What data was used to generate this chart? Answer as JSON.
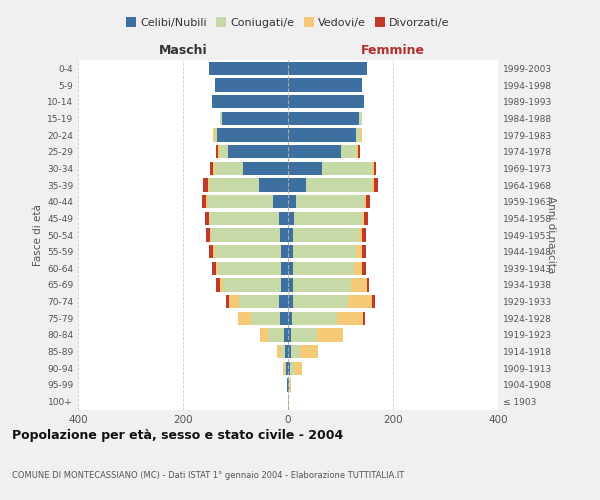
{
  "age_groups": [
    "100+",
    "95-99",
    "90-94",
    "85-89",
    "80-84",
    "75-79",
    "70-74",
    "65-69",
    "60-64",
    "55-59",
    "50-54",
    "45-49",
    "40-44",
    "35-39",
    "30-34",
    "25-29",
    "20-24",
    "15-19",
    "10-14",
    "5-9",
    "0-4"
  ],
  "birth_years": [
    "≤ 1903",
    "1904-1908",
    "1909-1913",
    "1914-1918",
    "1919-1923",
    "1924-1928",
    "1929-1933",
    "1934-1938",
    "1939-1943",
    "1944-1948",
    "1949-1953",
    "1954-1958",
    "1959-1963",
    "1964-1968",
    "1969-1973",
    "1974-1978",
    "1979-1983",
    "1984-1988",
    "1989-1993",
    "1994-1998",
    "1999-2003"
  ],
  "maschi": {
    "celibi": [
      0,
      1,
      3,
      5,
      8,
      15,
      18,
      14,
      14,
      14,
      16,
      18,
      28,
      55,
      85,
      115,
      135,
      125,
      145,
      140,
      150
    ],
    "coniugati": [
      0,
      0,
      3,
      8,
      30,
      55,
      75,
      110,
      120,
      125,
      130,
      130,
      125,
      95,
      55,
      15,
      5,
      5,
      0,
      0,
      0
    ],
    "vedovi": [
      0,
      0,
      3,
      8,
      15,
      25,
      20,
      5,
      3,
      3,
      3,
      3,
      3,
      3,
      3,
      3,
      3,
      0,
      0,
      0,
      0
    ],
    "divorziati": [
      0,
      0,
      0,
      0,
      0,
      0,
      5,
      8,
      8,
      8,
      8,
      8,
      8,
      8,
      5,
      5,
      0,
      0,
      0,
      0,
      0
    ]
  },
  "femmine": {
    "nubili": [
      0,
      1,
      3,
      5,
      5,
      8,
      10,
      10,
      10,
      10,
      10,
      12,
      15,
      35,
      65,
      100,
      130,
      135,
      145,
      140,
      150
    ],
    "coniugate": [
      0,
      2,
      8,
      18,
      50,
      85,
      105,
      110,
      115,
      120,
      125,
      128,
      130,
      125,
      95,
      30,
      8,
      5,
      0,
      0,
      0
    ],
    "vedove": [
      1,
      3,
      15,
      35,
      50,
      50,
      45,
      30,
      15,
      10,
      5,
      5,
      3,
      3,
      3,
      3,
      3,
      0,
      0,
      0,
      0
    ],
    "divorziate": [
      0,
      0,
      0,
      0,
      0,
      3,
      5,
      5,
      8,
      8,
      8,
      8,
      8,
      8,
      5,
      5,
      0,
      0,
      0,
      0,
      0
    ]
  },
  "colors": {
    "celibe": "#3d6fa0",
    "coniugato": "#c8d9a8",
    "vedovo": "#f5c975",
    "divorziato": "#c0392b"
  },
  "title": "Popolazione per età, sesso e stato civile - 2004",
  "subtitle": "COMUNE DI MONTECASSIANO (MC) - Dati ISTAT 1° gennaio 2004 - Elaborazione TUTTITALIA.IT",
  "ylabel_left": "Fasce di età",
  "ylabel_right": "Anni di nascita",
  "xlabel_left": "Maschi",
  "xlabel_right": "Femmine",
  "xlim": 400,
  "background_color": "#f0f0f0",
  "plot_bg": "#ffffff"
}
